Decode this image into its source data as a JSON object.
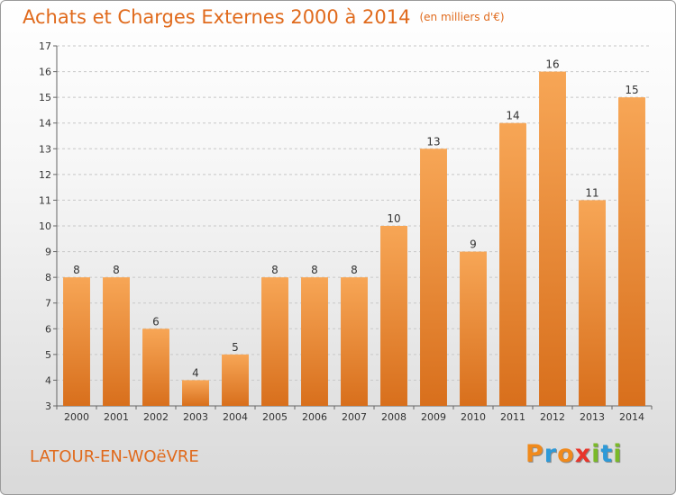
{
  "title": "Achats et Charges Externes 2000 à 2014",
  "unit": "(en milliers d'€)",
  "place": "LATOUR-EN-WOëVRE",
  "logo": {
    "letters": [
      "P",
      "r",
      "o",
      "x",
      "i",
      "t",
      "i"
    ],
    "colors": [
      "#f08a1c",
      "#2e9ad8",
      "#f08a1c",
      "#e8352b",
      "#7ab929",
      "#2e9ad8",
      "#7ab929"
    ]
  },
  "colors": {
    "bar_top": "#f7a656",
    "bar_bottom": "#d86f1c",
    "title": "#e06a1c"
  },
  "chart_data": {
    "type": "bar",
    "title": "Achats et Charges Externes 2000 à 2014",
    "categories": [
      "2000",
      "2001",
      "2002",
      "2003",
      "2004",
      "2005",
      "2006",
      "2007",
      "2008",
      "2009",
      "2010",
      "2011",
      "2012",
      "2013",
      "2014"
    ],
    "values": [
      8,
      8,
      6,
      4,
      5,
      8,
      8,
      8,
      10,
      13,
      9,
      14,
      16,
      11,
      15
    ],
    "ylim": [
      3,
      17
    ],
    "yticks": [
      3,
      4,
      5,
      6,
      7,
      8,
      9,
      10,
      11,
      12,
      13,
      14,
      15,
      16,
      17
    ],
    "grid": true,
    "legend": "none"
  }
}
